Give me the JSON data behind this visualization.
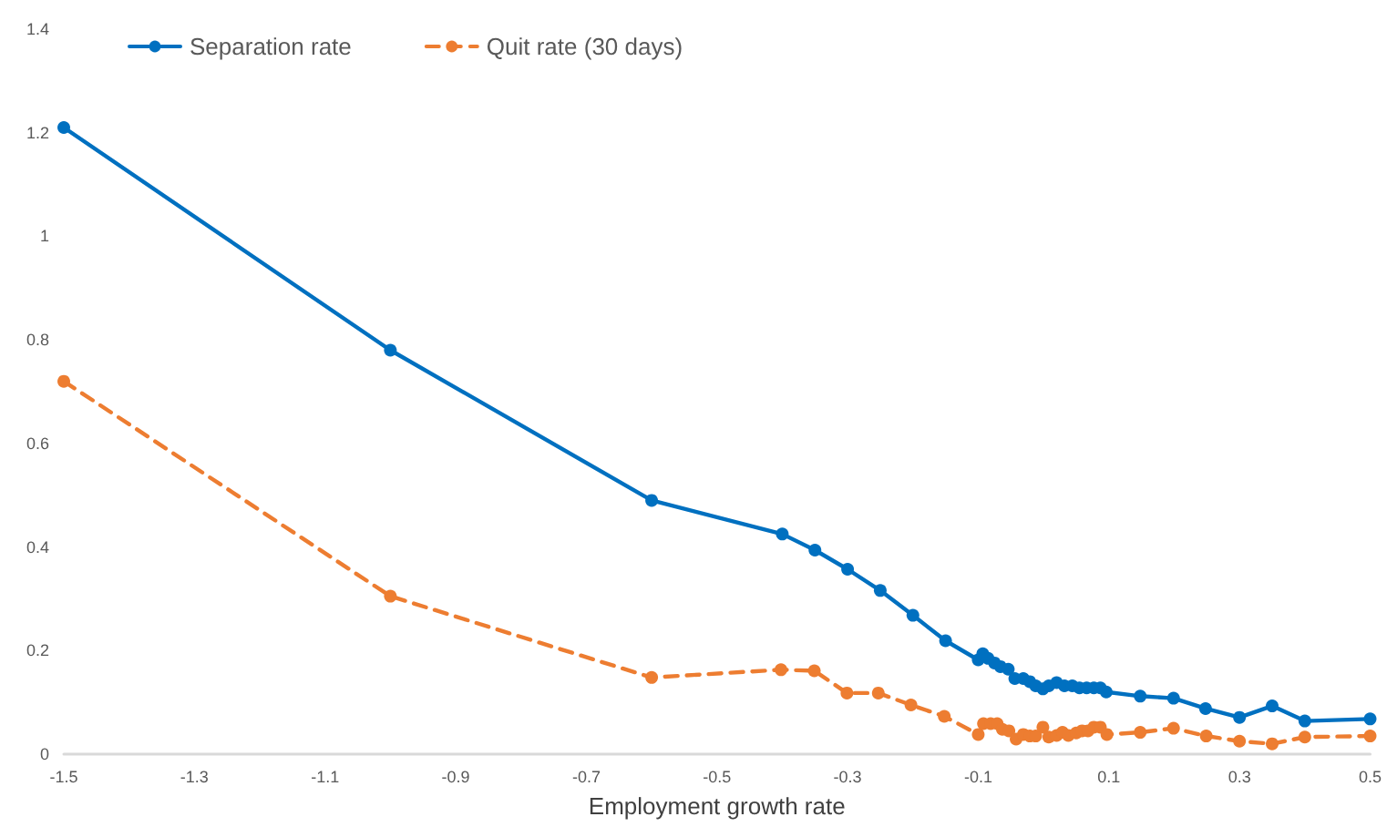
{
  "chart_data": {
    "type": "line",
    "xlabel": "Employment growth rate",
    "legend": "top left",
    "marker": "circle",
    "grid": false,
    "xlim": [
      -1.5,
      0.5
    ],
    "xticks": [
      -1.5,
      -1.3,
      -1.1,
      -0.9,
      -0.7,
      -0.5,
      -0.3,
      -0.1,
      0.1,
      0.3,
      0.5
    ],
    "ylim": [
      0,
      1.4
    ],
    "yticks": [
      0,
      0.2,
      0.4,
      0.6,
      0.8,
      1,
      1.2,
      1.4
    ],
    "series": [
      {
        "name": "Separation rate",
        "color": "#0070c0",
        "line_style": "solid",
        "x": [
          -1.5,
          -1.0,
          -0.6,
          -0.4,
          -0.35,
          -0.3,
          -0.25,
          -0.2,
          -0.15,
          -0.1,
          -0.093,
          -0.085,
          -0.075,
          -0.066,
          -0.054,
          -0.044,
          -0.031,
          -0.021,
          -0.012,
          -0.001,
          0.008,
          0.02,
          0.032,
          0.044,
          0.055,
          0.066,
          0.077,
          0.087,
          0.096,
          0.148,
          0.199,
          0.248,
          0.3,
          0.35,
          0.4,
          0.5
        ],
        "values": [
          1.21,
          0.78,
          0.49,
          0.425,
          0.394,
          0.357,
          0.316,
          0.268,
          0.219,
          0.182,
          0.194,
          0.185,
          0.176,
          0.169,
          0.164,
          0.146,
          0.146,
          0.14,
          0.132,
          0.126,
          0.132,
          0.138,
          0.132,
          0.132,
          0.128,
          0.128,
          0.128,
          0.128,
          0.12,
          0.112,
          0.108,
          0.088,
          0.071,
          0.093,
          0.064,
          0.068
        ]
      },
      {
        "name": "Quit rate (30 days)",
        "color": "#ed7d31",
        "line_style": "dashed",
        "x": [
          -1.5,
          -1.0,
          -0.6,
          -0.402,
          -0.351,
          -0.301,
          -0.253,
          -0.203,
          -0.152,
          -0.1,
          -0.092,
          -0.081,
          -0.071,
          -0.063,
          -0.053,
          -0.042,
          -0.031,
          -0.021,
          -0.012,
          -0.001,
          0.008,
          0.02,
          0.029,
          0.038,
          0.05,
          0.059,
          0.068,
          0.077,
          0.087,
          0.097,
          0.148,
          0.199,
          0.249,
          0.3,
          0.35,
          0.4,
          0.5
        ],
        "values": [
          0.72,
          0.305,
          0.148,
          0.163,
          0.161,
          0.118,
          0.118,
          0.095,
          0.073,
          0.038,
          0.059,
          0.059,
          0.059,
          0.048,
          0.045,
          0.029,
          0.038,
          0.035,
          0.035,
          0.052,
          0.033,
          0.036,
          0.042,
          0.036,
          0.041,
          0.045,
          0.045,
          0.052,
          0.052,
          0.038,
          0.042,
          0.05,
          0.035,
          0.025,
          0.02,
          0.033,
          0.035
        ]
      }
    ]
  }
}
